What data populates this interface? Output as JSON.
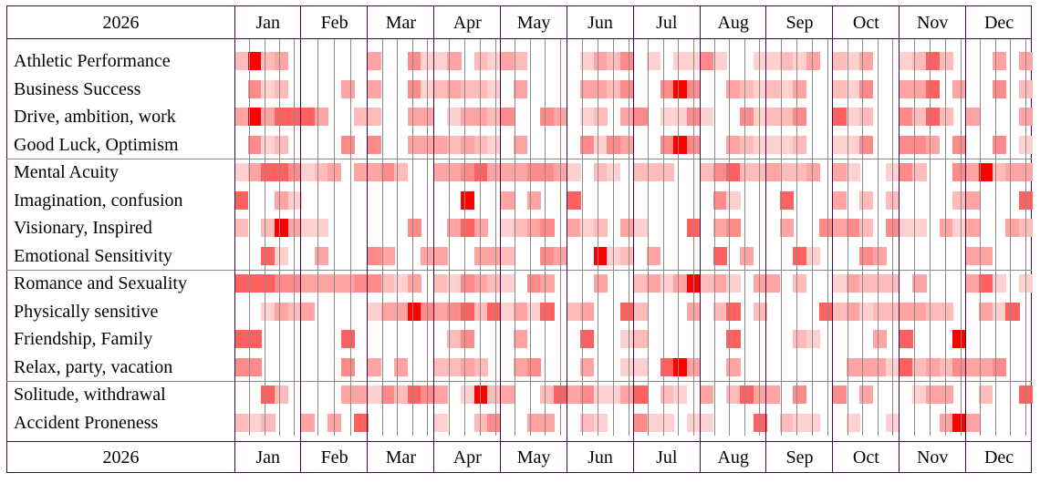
{
  "chart_data": {
    "type": "heatmap",
    "year_label": "2026",
    "months": [
      "Jan",
      "Feb",
      "Mar",
      "Apr",
      "May",
      "Jun",
      "Jul",
      "Aug",
      "Sep",
      "Oct",
      "Nov",
      "Dec"
    ],
    "periods_per_month": 5,
    "intensity_scale": [
      0,
      6
    ],
    "colors": [
      "#ffffff",
      "#ffd0d0",
      "#ffbaba",
      "#ffa3a3",
      "#ff8a8a",
      "#ff6060",
      "#ff0000"
    ],
    "groups": [
      [
        0,
        1,
        2,
        3
      ],
      [
        4,
        5,
        6,
        7
      ],
      [
        8,
        9,
        10,
        11
      ],
      [
        12,
        13
      ]
    ],
    "rows": [
      {
        "label": "Athletic Performance",
        "values": "262300000030041130213200001324010114100112130213001252000303"
      },
      {
        "label": "Business Success",
        "values": "041200003030041232210300003324004640032121300214003350300402"
      },
      {
        "label": "Drive, ambition, work",
        "values": "363555300220033013324004301203401141004122400512004252030003"
      },
      {
        "label": "Good Luck, Optimism",
        "values": "041200004040033323210300004143004640032111200114004430400401"
      },
      {
        "label": "Mental Acuity",
        "values": "135541230334200334533344310210222002452232230310014200436233"
      },
      {
        "label": "Imagination, confusion",
        "values": "500310000000000006003030050000000000410005000302020000230005"
      },
      {
        "label": "Visionary, Inspired",
        "values": "202631100000040035301234031203100050340003004342041103130032"
      },
      {
        "label": "Emotional Sensitivity",
        "values": "005100300043003300332004300612030000503000510004300000033000"
      },
      {
        "label": "Romance and Sexuality",
        "values": "555443333442130214321043000300231362310330200132220300035101"
      },
      {
        "label": "Physically sensitive",
        "values": "001323000013364345251315023005200030250200005231223322003150"
      },
      {
        "label": "Friendship, Family",
        "values": "550000005000000024000300005001200000050000210000305000600000"
      },
      {
        "label": "Relax, party, vacation",
        "values": "440000004030300223200340003001105630030000000033315232433400"
      },
      {
        "label": "Solitude, withdrawal",
        "values": "005200003314254301623002534113502103025330400403000133002005"
      },
      {
        "label": "Accident Proneness",
        "values": "212003030500000100240033002100411011000502110010010003630000"
      }
    ]
  }
}
